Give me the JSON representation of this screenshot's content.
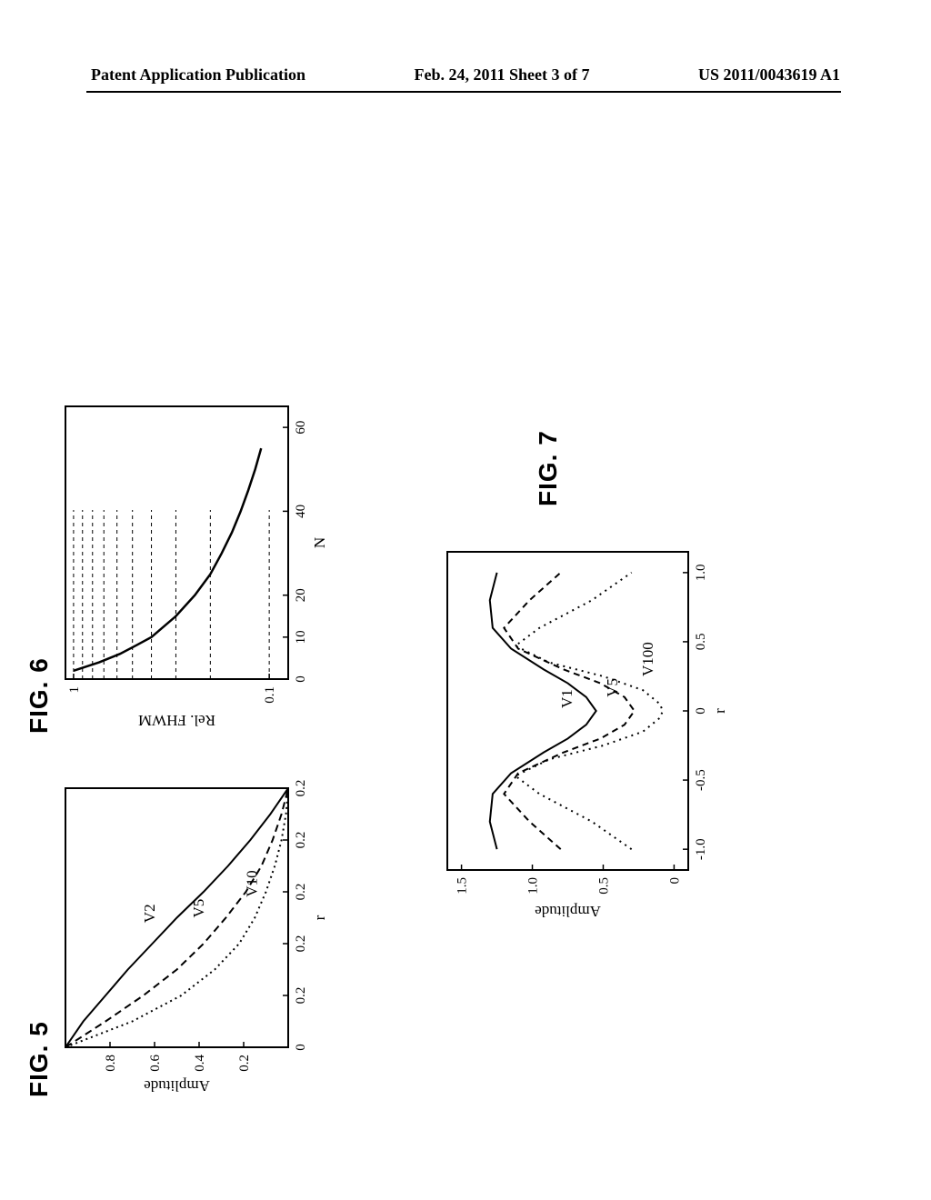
{
  "header": {
    "left": "Patent Application Publication",
    "center": "Feb. 24, 2011  Sheet 3 of 7",
    "right": "US 2011/0043619 A1"
  },
  "fig5": {
    "label": "FIG. 5",
    "type": "line",
    "xlabel": "r",
    "ylabel": "Amplitude",
    "xlim": [
      0,
      1.0
    ],
    "ylim": [
      0,
      1.0
    ],
    "xticks": [
      0,
      0.2,
      0.4,
      0.6,
      0.8,
      1.0
    ],
    "xtick_labels": [
      "0",
      "0.2",
      "0.2",
      "0.2",
      "0.2",
      "0.2"
    ],
    "yticks": [
      0.2,
      0.4,
      0.6,
      0.8
    ],
    "ytick_labels": [
      "0.2",
      "0.4",
      "0.6",
      "0.8"
    ],
    "series": [
      {
        "name": "V2",
        "style": "solid",
        "points": [
          [
            0,
            1.0
          ],
          [
            0.1,
            0.92
          ],
          [
            0.2,
            0.82
          ],
          [
            0.3,
            0.72
          ],
          [
            0.4,
            0.61
          ],
          [
            0.5,
            0.5
          ],
          [
            0.6,
            0.38
          ],
          [
            0.7,
            0.27
          ],
          [
            0.8,
            0.17
          ],
          [
            0.9,
            0.08
          ],
          [
            1.0,
            0.0
          ]
        ]
      },
      {
        "name": "V5",
        "style": "dash",
        "points": [
          [
            0,
            1.0
          ],
          [
            0.1,
            0.82
          ],
          [
            0.2,
            0.65
          ],
          [
            0.3,
            0.5
          ],
          [
            0.4,
            0.38
          ],
          [
            0.5,
            0.28
          ],
          [
            0.6,
            0.19
          ],
          [
            0.7,
            0.12
          ],
          [
            0.8,
            0.07
          ],
          [
            0.9,
            0.03
          ],
          [
            1.0,
            0.0
          ]
        ]
      },
      {
        "name": "V10",
        "style": "dot",
        "points": [
          [
            0,
            1.0
          ],
          [
            0.1,
            0.7
          ],
          [
            0.2,
            0.48
          ],
          [
            0.3,
            0.33
          ],
          [
            0.4,
            0.22
          ],
          [
            0.5,
            0.15
          ],
          [
            0.6,
            0.1
          ],
          [
            0.7,
            0.06
          ],
          [
            0.8,
            0.03
          ],
          [
            0.9,
            0.01
          ],
          [
            1.0,
            0.0
          ]
        ]
      }
    ],
    "series_labels": [
      {
        "text": "V2",
        "x": 0.48,
        "y": 0.6
      },
      {
        "text": "V5",
        "x": 0.5,
        "y": 0.38
      },
      {
        "text": "V10",
        "x": 0.58,
        "y": 0.14
      }
    ],
    "line_color": "#000000",
    "background_color": "#ffffff",
    "axis_width": 2
  },
  "fig6": {
    "label": "FIG. 6",
    "type": "line",
    "xlabel": "N",
    "ylabel": "Rel. FHWM",
    "xlim": [
      0,
      65
    ],
    "ylim": [
      0.08,
      1.1
    ],
    "yscale": "log",
    "xticks": [
      0,
      10,
      20,
      40,
      60
    ],
    "xtick_labels": [
      "0",
      "10",
      "20",
      "40",
      "60"
    ],
    "yticks_major": [
      0.1,
      1
    ],
    "ytick_labels": [
      "0.1",
      "1"
    ],
    "grid_y": [
      0.1,
      0.2,
      0.3,
      0.4,
      0.5,
      0.6,
      0.7,
      0.8,
      0.9,
      1.0
    ],
    "series": [
      {
        "name": "curve",
        "style": "solid",
        "points": [
          [
            2,
            1.0
          ],
          [
            4,
            0.74
          ],
          [
            6,
            0.58
          ],
          [
            8,
            0.48
          ],
          [
            10,
            0.4
          ],
          [
            15,
            0.3
          ],
          [
            20,
            0.24
          ],
          [
            25,
            0.2
          ],
          [
            30,
            0.175
          ],
          [
            35,
            0.155
          ],
          [
            40,
            0.14
          ],
          [
            45,
            0.128
          ],
          [
            50,
            0.118
          ],
          [
            55,
            0.11
          ]
        ]
      }
    ],
    "line_color": "#000000",
    "grid_color": "#000000",
    "grid_style": "dash",
    "background_color": "#ffffff",
    "axis_width": 2
  },
  "fig7": {
    "label": "FIG. 7",
    "type": "line",
    "xlabel": "r",
    "ylabel": "Amplitude",
    "xlim": [
      -1.15,
      1.15
    ],
    "ylim": [
      -0.1,
      1.6
    ],
    "xticks": [
      -1.0,
      -0.5,
      0,
      0.5,
      1.0
    ],
    "xtick_labels": [
      "-1.0",
      "-0.5",
      "0",
      "0.5",
      "1.0"
    ],
    "yticks": [
      0,
      0.5,
      1.0,
      1.5
    ],
    "ytick_labels": [
      "0",
      "0.5",
      "1.0",
      "1.5"
    ],
    "series": [
      {
        "name": "V1",
        "style": "solid",
        "points": [
          [
            -1.0,
            1.25
          ],
          [
            -0.8,
            1.3
          ],
          [
            -0.6,
            1.28
          ],
          [
            -0.45,
            1.15
          ],
          [
            -0.3,
            0.92
          ],
          [
            -0.2,
            0.75
          ],
          [
            -0.1,
            0.62
          ],
          [
            0,
            0.55
          ],
          [
            0.1,
            0.62
          ],
          [
            0.2,
            0.75
          ],
          [
            0.3,
            0.92
          ],
          [
            0.45,
            1.15
          ],
          [
            0.6,
            1.28
          ],
          [
            0.8,
            1.3
          ],
          [
            1.0,
            1.25
          ]
        ]
      },
      {
        "name": "V5",
        "style": "dash",
        "points": [
          [
            -1.0,
            0.8
          ],
          [
            -0.8,
            1.02
          ],
          [
            -0.6,
            1.2
          ],
          [
            -0.45,
            1.1
          ],
          [
            -0.3,
            0.78
          ],
          [
            -0.2,
            0.52
          ],
          [
            -0.1,
            0.35
          ],
          [
            0,
            0.28
          ],
          [
            0.1,
            0.35
          ],
          [
            0.2,
            0.52
          ],
          [
            0.3,
            0.78
          ],
          [
            0.45,
            1.1
          ],
          [
            0.6,
            1.2
          ],
          [
            0.8,
            1.02
          ],
          [
            1.0,
            0.8
          ]
        ]
      },
      {
        "name": "V100",
        "style": "dot",
        "points": [
          [
            -1.0,
            0.3
          ],
          [
            -0.8,
            0.58
          ],
          [
            -0.6,
            0.95
          ],
          [
            -0.47,
            1.12
          ],
          [
            -0.35,
            0.88
          ],
          [
            -0.25,
            0.5
          ],
          [
            -0.15,
            0.22
          ],
          [
            -0.05,
            0.1
          ],
          [
            0,
            0.08
          ],
          [
            0.05,
            0.1
          ],
          [
            0.15,
            0.22
          ],
          [
            0.25,
            0.5
          ],
          [
            0.35,
            0.88
          ],
          [
            0.47,
            1.12
          ],
          [
            0.6,
            0.95
          ],
          [
            0.8,
            0.58
          ],
          [
            1.0,
            0.3
          ]
        ]
      }
    ],
    "series_labels": [
      {
        "text": "V1",
        "x": 0.02,
        "y": 0.72
      },
      {
        "text": "V5",
        "x": 0.1,
        "y": 0.4
      },
      {
        "text": "V100",
        "x": 0.25,
        "y": 0.15
      }
    ],
    "line_color": "#000000",
    "background_color": "#ffffff",
    "axis_width": 2
  }
}
